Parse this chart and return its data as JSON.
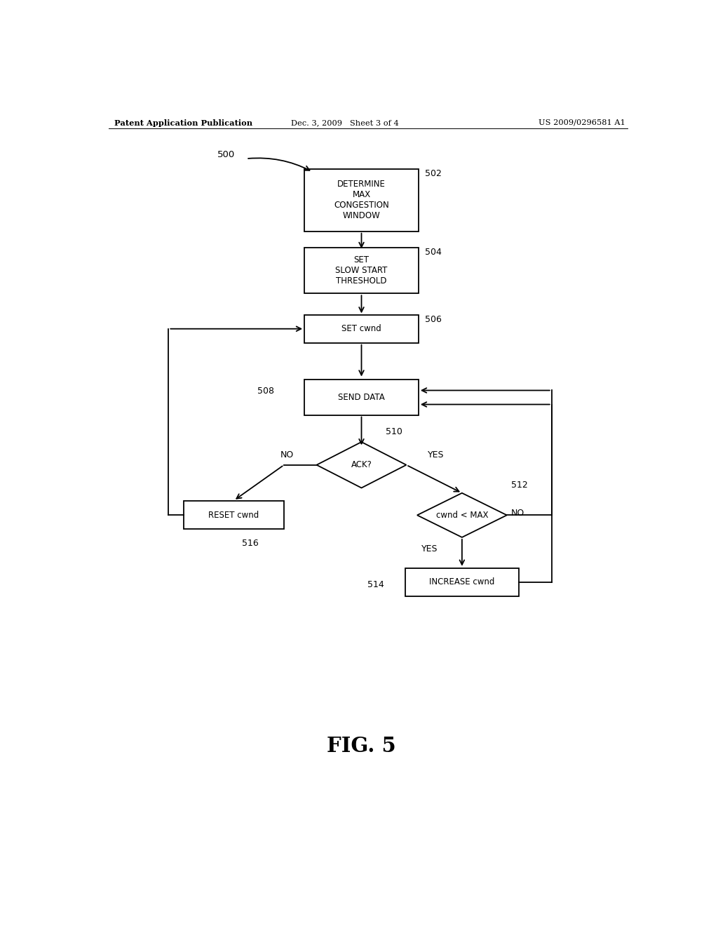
{
  "bg_color": "#ffffff",
  "header_left": "Patent Application Publication",
  "header_mid": "Dec. 3, 2009   Sheet 3 of 4",
  "header_right": "US 2009/0296581 A1",
  "fig_label": "FIG. 5",
  "label_500": "500",
  "label_502": "502",
  "label_504": "504",
  "label_506": "506",
  "label_508": "508",
  "label_510": "510",
  "label_512": "512",
  "label_514": "514",
  "label_516": "516",
  "box_502_text": "DETERMINE\nMAX\nCONGESTION\nWINDOW",
  "box_504_text": "SET\nSLOW START\nTHRESHOLD",
  "box_506_text": "SET cwnd",
  "box_508_text": "SEND DATA",
  "diamond_510_text": "ACK?",
  "diamond_512_text": "cwnd < MAX",
  "box_514_text": "INCREASE cwnd",
  "box_516_text": "RESET cwnd",
  "text_no_510": "NO",
  "text_yes_510": "YES",
  "text_yes_512": "YES",
  "text_no_512": "NO"
}
